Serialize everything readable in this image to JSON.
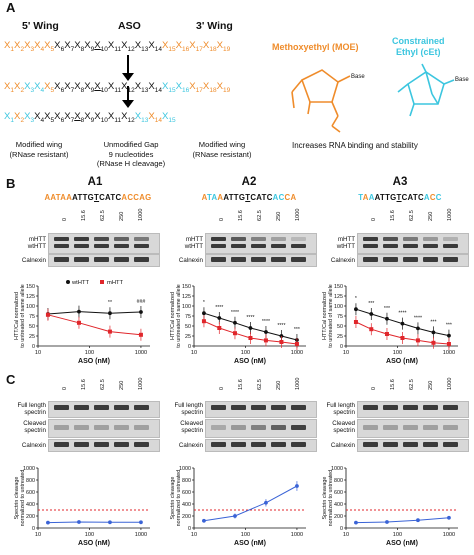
{
  "panel_a": {
    "label": "A",
    "wing5": "5' Wing",
    "aso": "ASO",
    "wing3": "3' Wing",
    "row1": [
      {
        "t": "X",
        "n": "1",
        "c": "orange"
      },
      {
        "t": "X",
        "n": "2",
        "c": "orange"
      },
      {
        "t": "X",
        "n": "3",
        "c": "orange"
      },
      {
        "t": "X",
        "n": "4",
        "c": "orange"
      },
      {
        "t": "X",
        "n": "5",
        "c": "orange"
      },
      {
        "t": "X",
        "n": "6",
        "c": "black"
      },
      {
        "t": "X",
        "n": "7",
        "c": "black"
      },
      {
        "t": "X",
        "n": "8",
        "c": "black"
      },
      {
        "t": "X",
        "n": "9",
        "c": "black"
      },
      {
        "t": "X",
        "n": "10",
        "c": "black"
      },
      {
        "t": "X",
        "n": "11",
        "c": "black"
      },
      {
        "t": "X",
        "n": "12",
        "c": "black"
      },
      {
        "t": "X",
        "n": "13",
        "c": "black"
      },
      {
        "t": "X",
        "n": "14",
        "c": "black"
      },
      {
        "t": "X",
        "n": "15",
        "c": "orange"
      },
      {
        "t": "X",
        "n": "16",
        "c": "orange"
      },
      {
        "t": "X",
        "n": "17",
        "c": "orange"
      },
      {
        "t": "X",
        "n": "18",
        "c": "orange"
      },
      {
        "t": "X",
        "n": "19",
        "c": "orange"
      }
    ],
    "row2": [
      {
        "t": "X",
        "n": "1",
        "c": "orange"
      },
      {
        "t": "X",
        "n": "2",
        "c": "orange"
      },
      {
        "t": "X",
        "n": "3",
        "c": "cyan"
      },
      {
        "t": "X",
        "n": "4",
        "c": "cyan"
      },
      {
        "t": "X",
        "n": "5",
        "c": "orange"
      },
      {
        "t": "X",
        "n": "6",
        "c": "black"
      },
      {
        "t": "X",
        "n": "7",
        "c": "black"
      },
      {
        "t": "X",
        "n": "8",
        "c": "black"
      },
      {
        "t": "X",
        "n": "9",
        "c": "black"
      },
      {
        "t": "X",
        "n": "10",
        "c": "black"
      },
      {
        "t": "X",
        "n": "11",
        "c": "black"
      },
      {
        "t": "X",
        "n": "12",
        "c": "black"
      },
      {
        "t": "X",
        "n": "13",
        "c": "black"
      },
      {
        "t": "X",
        "n": "14",
        "c": "black"
      },
      {
        "t": "X",
        "n": "15",
        "c": "cyan"
      },
      {
        "t": "X",
        "n": "16",
        "c": "cyan"
      },
      {
        "t": "X",
        "n": "17",
        "c": "orange"
      },
      {
        "t": "X",
        "n": "18",
        "c": "orange"
      },
      {
        "t": "X",
        "n": "19",
        "c": "orange"
      }
    ],
    "row3": [
      {
        "t": "X",
        "n": "1",
        "c": "cyan"
      },
      {
        "t": "X",
        "n": "2",
        "c": "orange"
      },
      {
        "t": "X",
        "n": "3",
        "c": "cyan"
      },
      {
        "t": "X",
        "n": "4",
        "c": "black"
      },
      {
        "t": "X",
        "n": "5",
        "c": "black"
      },
      {
        "t": "X",
        "n": "6",
        "c": "black"
      },
      {
        "t": "X",
        "n": "7",
        "c": "black"
      },
      {
        "t": "X",
        "n": "8",
        "c": "black"
      },
      {
        "t": "X",
        "n": "9",
        "c": "black"
      },
      {
        "t": "X",
        "n": "10",
        "c": "black"
      },
      {
        "t": "X",
        "n": "11",
        "c": "black"
      },
      {
        "t": "X",
        "n": "12",
        "c": "black"
      },
      {
        "t": "X",
        "n": "13",
        "c": "cyan"
      },
      {
        "t": "X",
        "n": "14",
        "c": "orange"
      },
      {
        "t": "X",
        "n": "15",
        "c": "cyan"
      }
    ],
    "note_left": [
      "Modified wing",
      "(RNase resistant)"
    ],
    "note_mid": [
      "Unmodified Gap",
      "9 nucleotides",
      "(RNase H cleavage)"
    ],
    "note_right": [
      "Modified wing",
      "(RNase resistant)"
    ],
    "moe": [
      "Methoxyethyl (MOE)"
    ],
    "cet": [
      "Constrained",
      "Ethyl (cEt)"
    ],
    "base1": "Base",
    "base2": "Base",
    "chem_note": "Increases RNA binding and stability"
  },
  "panel_b": {
    "label": "B",
    "lanes": [
      "0",
      "15.6",
      "62.5",
      "250",
      "1000"
    ],
    "band_labels": {
      "mhtt": "mHTT",
      "wthtt": "wtHTT",
      "calnexin": "Calnexin"
    },
    "columns": [
      {
        "title": "A1",
        "seq": "AATAA ATTGTCATC ACCAG"
      },
      {
        "title": "A2",
        "seq": "ATAA ATTGTCATC ACCA"
      },
      {
        "title": "A3",
        "seq": "TAA ATTGTCATC ACC"
      }
    ],
    "legend": {
      "wt": "wtHTT",
      "m": "mHTT"
    },
    "ylabel": [
      "HTT/Cal normalized",
      "to untreated of same allele"
    ],
    "xlabel": "ASO (nM)"
  },
  "panel_c": {
    "label": "C",
    "band_labels": {
      "full": [
        "Full length",
        "spectrin"
      ],
      "cleaved": [
        "Cleaved",
        "spectrin"
      ],
      "calnexin": "Calnexin"
    },
    "ylabel": [
      "Spectrin cleavage",
      "normalized to untreated"
    ],
    "xlabel": "ASO (nM)"
  },
  "colors": {
    "orange": "#ef8c2b",
    "cyan": "#3cc6df",
    "red": "#e0262b",
    "blue": "#3a63d6",
    "black": "#111111"
  },
  "chart_data": [
    {
      "type": "line",
      "panel": "B-A1",
      "xscale": "log",
      "xlim": [
        10,
        1500
      ],
      "ylim": [
        0,
        150
      ],
      "yticks": [
        0,
        25,
        50,
        75,
        100,
        125,
        150
      ],
      "xticks": [
        10,
        100,
        1000
      ],
      "series": [
        {
          "name": "wtHTT",
          "x": [
            15.6,
            62.5,
            250,
            1000
          ],
          "y": [
            80,
            86,
            82,
            85
          ]
        },
        {
          "name": "mHTT",
          "x": [
            15.6,
            62.5,
            250,
            1000
          ],
          "y": [
            78,
            58,
            36,
            28
          ]
        }
      ],
      "annotations": [
        "**",
        "###"
      ]
    },
    {
      "type": "line",
      "panel": "B-A2",
      "xscale": "log",
      "xlim": [
        10,
        1500
      ],
      "ylim": [
        0,
        150
      ],
      "yticks": [
        0,
        25,
        50,
        75,
        100,
        125,
        150
      ],
      "xticks": [
        10,
        100,
        1000
      ],
      "series": [
        {
          "name": "wtHTT",
          "x": [
            15.6,
            31,
            62.5,
            125,
            250,
            500,
            1000
          ],
          "y": [
            82,
            70,
            58,
            45,
            35,
            25,
            15
          ]
        },
        {
          "name": "mHTT",
          "x": [
            15.6,
            31,
            62.5,
            125,
            250,
            500,
            1000
          ],
          "y": [
            62,
            45,
            32,
            20,
            14,
            10,
            5
          ]
        }
      ],
      "annotations": [
        "*",
        "****",
        "****",
        "****",
        "****",
        "****",
        "***"
      ]
    },
    {
      "type": "line",
      "panel": "B-A3",
      "xscale": "log",
      "xlim": [
        10,
        1500
      ],
      "ylim": [
        0,
        150
      ],
      "yticks": [
        0,
        25,
        50,
        75,
        100,
        125,
        150
      ],
      "xticks": [
        10,
        100,
        1000
      ],
      "series": [
        {
          "name": "wtHTT",
          "x": [
            15.6,
            31,
            62.5,
            125,
            250,
            500,
            1000
          ],
          "y": [
            92,
            80,
            68,
            56,
            44,
            34,
            26
          ]
        },
        {
          "name": "mHTT",
          "x": [
            15.6,
            31,
            62.5,
            125,
            250,
            500,
            1000
          ],
          "y": [
            60,
            42,
            30,
            20,
            14,
            8,
            5
          ]
        }
      ],
      "annotations": [
        "*",
        "***",
        "***",
        "****",
        "****",
        "***",
        "***"
      ]
    },
    {
      "type": "line",
      "panel": "C-A1",
      "xscale": "log",
      "xlim": [
        10,
        1500
      ],
      "ylim": [
        0,
        1000
      ],
      "yticks": [
        0,
        200,
        400,
        600,
        800,
        1000
      ],
      "xticks": [
        10,
        100,
        1000
      ],
      "threshold": 300,
      "series": [
        {
          "name": "",
          "x": [
            15.6,
            62.5,
            250,
            1000
          ],
          "y": [
            90,
            100,
            95,
            95
          ]
        }
      ]
    },
    {
      "type": "line",
      "panel": "C-A2",
      "xscale": "log",
      "xlim": [
        10,
        1500
      ],
      "ylim": [
        0,
        1000
      ],
      "yticks": [
        0,
        200,
        400,
        600,
        800,
        1000
      ],
      "xticks": [
        10,
        100,
        1000
      ],
      "threshold": 300,
      "series": [
        {
          "name": "",
          "x": [
            15.6,
            62.5,
            250,
            1000
          ],
          "y": [
            120,
            200,
            420,
            700
          ]
        }
      ]
    },
    {
      "type": "line",
      "panel": "C-A3",
      "xscale": "log",
      "xlim": [
        10,
        1500
      ],
      "ylim": [
        0,
        1000
      ],
      "yticks": [
        0,
        200,
        400,
        600,
        800,
        1000
      ],
      "xticks": [
        10,
        100,
        1000
      ],
      "threshold": 300,
      "series": [
        {
          "name": "",
          "x": [
            15.6,
            62.5,
            250,
            1000
          ],
          "y": [
            90,
            100,
            130,
            170
          ]
        }
      ]
    }
  ]
}
